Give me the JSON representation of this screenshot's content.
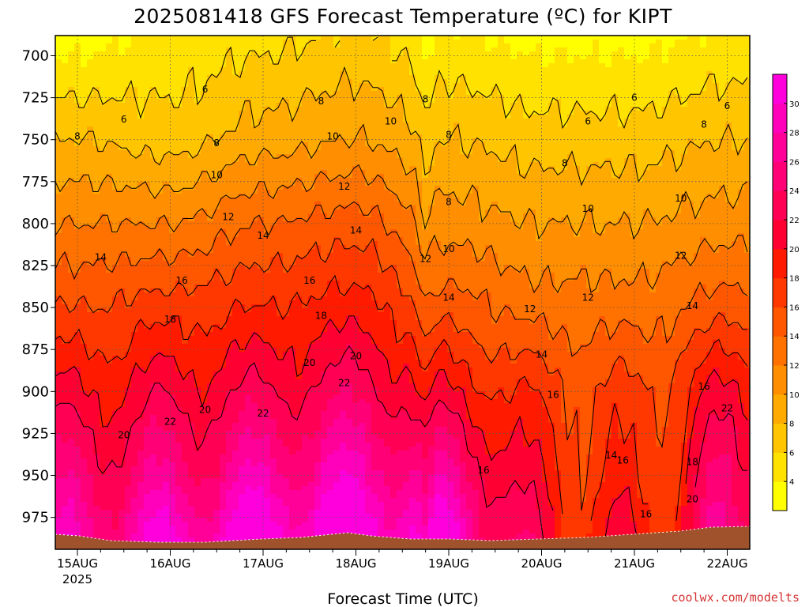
{
  "chart_data": {
    "type": "heatmap",
    "title": "2025081418 GFS Forecast Temperature (ºC) for KIPT",
    "xlabel": "Forecast Time (UTC)",
    "ylabel": "",
    "credit": "coolwx.com/modelts",
    "x_ticks": [
      "15AUG",
      "16AUG",
      "17AUG",
      "18AUG",
      "19AUG",
      "20AUG",
      "21AUG",
      "22AUG"
    ],
    "x_tick_sub": "2025",
    "y_ticks": [
      700,
      725,
      750,
      775,
      800,
      825,
      850,
      875,
      900,
      925,
      950,
      975
    ],
    "y_range": [
      688,
      994
    ],
    "y_scale": "pressure (hPa), top to bottom",
    "grid": true,
    "colorbar": {
      "ticks": [
        4,
        6,
        8,
        10,
        12,
        14,
        16,
        18,
        20,
        22,
        24,
        26,
        28,
        30
      ],
      "colors": [
        "#ffff00",
        "#ffe200",
        "#ffc600",
        "#ffaa00",
        "#ff8e00",
        "#ff7200",
        "#ff5600",
        "#ff3800",
        "#ff1a00",
        "#ff0033",
        "#ff0055",
        "#ff0077",
        "#ff0099",
        "#ff00bb",
        "#ff00dd"
      ]
    },
    "contour_levels": [
      6,
      8,
      10,
      12,
      14,
      16,
      18,
      20,
      22
    ],
    "series": [
      {
        "x": "15AUG 00Z",
        "profile": [
          {
            "p": 700,
            "t": 4
          },
          {
            "p": 750,
            "t": 8
          },
          {
            "p": 800,
            "t": 12
          },
          {
            "p": 850,
            "t": 16
          },
          {
            "p": 900,
            "t": 20
          },
          {
            "p": 950,
            "t": 24
          },
          {
            "p": 975,
            "t": 26
          }
        ]
      },
      {
        "x": "16AUG 00Z",
        "profile": [
          {
            "p": 700,
            "t": 5
          },
          {
            "p": 750,
            "t": 7
          },
          {
            "p": 800,
            "t": 12
          },
          {
            "p": 850,
            "t": 17
          },
          {
            "p": 900,
            "t": 21
          },
          {
            "p": 950,
            "t": 25
          },
          {
            "p": 975,
            "t": 28
          }
        ]
      },
      {
        "x": "17AUG 00Z",
        "profile": [
          {
            "p": 700,
            "t": 6
          },
          {
            "p": 750,
            "t": 9
          },
          {
            "p": 800,
            "t": 14
          },
          {
            "p": 850,
            "t": 18
          },
          {
            "p": 900,
            "t": 22
          },
          {
            "p": 950,
            "t": 27
          },
          {
            "p": 975,
            "t": 30
          }
        ]
      },
      {
        "x": "18AUG 00Z",
        "profile": [
          {
            "p": 700,
            "t": 7
          },
          {
            "p": 750,
            "t": 10
          },
          {
            "p": 800,
            "t": 15
          },
          {
            "p": 850,
            "t": 19
          },
          {
            "p": 900,
            "t": 23
          },
          {
            "p": 950,
            "t": 28
          },
          {
            "p": 975,
            "t": 31
          }
        ]
      },
      {
        "x": "19AUG 00Z",
        "profile": [
          {
            "p": 700,
            "t": 5
          },
          {
            "p": 750,
            "t": 8
          },
          {
            "p": 800,
            "t": 11
          },
          {
            "p": 850,
            "t": 15
          },
          {
            "p": 900,
            "t": 20
          },
          {
            "p": 950,
            "t": 26
          },
          {
            "p": 975,
            "t": 29
          }
        ]
      },
      {
        "x": "20AUG 00Z",
        "profile": [
          {
            "p": 700,
            "t": 4
          },
          {
            "p": 750,
            "t": 7
          },
          {
            "p": 800,
            "t": 10
          },
          {
            "p": 850,
            "t": 13
          },
          {
            "p": 900,
            "t": 17
          },
          {
            "p": 950,
            "t": 19
          },
          {
            "p": 975,
            "t": 20
          }
        ]
      },
      {
        "x": "21AUG 00Z",
        "profile": [
          {
            "p": 700,
            "t": 4
          },
          {
            "p": 750,
            "t": 7
          },
          {
            "p": 800,
            "t": 10
          },
          {
            "p": 850,
            "t": 13
          },
          {
            "p": 900,
            "t": 16
          },
          {
            "p": 950,
            "t": 17
          },
          {
            "p": 975,
            "t": 18
          }
        ]
      },
      {
        "x": "22AUG 00Z",
        "profile": [
          {
            "p": 700,
            "t": 5
          },
          {
            "p": 750,
            "t": 8
          },
          {
            "p": 800,
            "t": 11
          },
          {
            "p": 850,
            "t": 15
          },
          {
            "p": 900,
            "t": 20
          },
          {
            "p": 950,
            "t": 23
          },
          {
            "p": 975,
            "t": 24
          }
        ]
      }
    ],
    "contour_labels": [
      {
        "v": "6",
        "x": "15AUG 12Z",
        "p": 738
      },
      {
        "v": "6",
        "x": "16AUG 09Z",
        "p": 720
      },
      {
        "v": "8",
        "x": "15AUG 00Z",
        "p": 748
      },
      {
        "v": "8",
        "x": "16AUG 12Z",
        "p": 752
      },
      {
        "v": "8",
        "x": "17AUG 15Z",
        "p": 727
      },
      {
        "v": "8",
        "x": "18AUG 18Z",
        "p": 726
      },
      {
        "v": "8",
        "x": "19AUG 00Z",
        "p": 747
      },
      {
        "v": "8",
        "x": "19AUG 00Z",
        "p": 787
      },
      {
        "v": "6",
        "x": "20AUG 12Z",
        "p": 739
      },
      {
        "v": "6",
        "x": "21AUG 00Z",
        "p": 725
      },
      {
        "v": "6",
        "x": "22AUG 00Z",
        "p": 730
      },
      {
        "v": "8",
        "x": "20AUG 06Z",
        "p": 764
      },
      {
        "v": "8",
        "x": "21AUG 18Z",
        "p": 741
      },
      {
        "v": "10",
        "x": "16AUG 12Z",
        "p": 771
      },
      {
        "v": "10",
        "x": "17AUG 18Z",
        "p": 748
      },
      {
        "v": "10",
        "x": "18AUG 09Z",
        "p": 739
      },
      {
        "v": "10",
        "x": "19AUG 00Z",
        "p": 815
      },
      {
        "v": "10",
        "x": "20AUG 12Z",
        "p": 791
      },
      {
        "v": "10",
        "x": "21AUG 12Z",
        "p": 785
      },
      {
        "v": "12",
        "x": "16AUG 15Z",
        "p": 796
      },
      {
        "v": "12",
        "x": "17AUG 21Z",
        "p": 778
      },
      {
        "v": "12",
        "x": "18AUG 18Z",
        "p": 821
      },
      {
        "v": "12",
        "x": "19AUG 21Z",
        "p": 851
      },
      {
        "v": "12",
        "x": "21AUG 12Z",
        "p": 819
      },
      {
        "v": "12",
        "x": "20AUG 12Z",
        "p": 844
      },
      {
        "v": "14",
        "x": "15AUG 06Z",
        "p": 820
      },
      {
        "v": "14",
        "x": "17AUG 00Z",
        "p": 807
      },
      {
        "v": "14",
        "x": "18AUG 00Z",
        "p": 804
      },
      {
        "v": "14",
        "x": "19AUG 00Z",
        "p": 844
      },
      {
        "v": "14",
        "x": "20AUG 00Z",
        "p": 878
      },
      {
        "v": "14",
        "x": "21AUG 15Z",
        "p": 849
      },
      {
        "v": "14",
        "x": "20AUG 18Z",
        "p": 938
      },
      {
        "v": "16",
        "x": "16AUG 03Z",
        "p": 834
      },
      {
        "v": "16",
        "x": "17AUG 12Z",
        "p": 834
      },
      {
        "v": "16",
        "x": "19AUG 09Z",
        "p": 947
      },
      {
        "v": "16",
        "x": "20AUG 03Z",
        "p": 902
      },
      {
        "v": "16",
        "x": "20AUG 21Z",
        "p": 941
      },
      {
        "v": "16",
        "x": "21AUG 18Z",
        "p": 897
      },
      {
        "v": "16",
        "x": "21AUG 03Z",
        "p": 973
      },
      {
        "v": "18",
        "x": "16AUG 00Z",
        "p": 857
      },
      {
        "v": "18",
        "x": "17AUG 15Z",
        "p": 855
      },
      {
        "v": "18",
        "x": "21AUG 15Z",
        "p": 942
      },
      {
        "v": "20",
        "x": "15AUG 12Z",
        "p": 926
      },
      {
        "v": "20",
        "x": "16AUG 09Z",
        "p": 911
      },
      {
        "v": "20",
        "x": "17AUG 12Z",
        "p": 883
      },
      {
        "v": "20",
        "x": "18AUG 00Z",
        "p": 879
      },
      {
        "v": "20",
        "x": "21AUG 15Z",
        "p": 964
      },
      {
        "v": "22",
        "x": "16AUG 00Z",
        "p": 918
      },
      {
        "v": "22",
        "x": "17AUG 00Z",
        "p": 913
      },
      {
        "v": "22",
        "x": "17AUG 21Z",
        "p": 895
      },
      {
        "v": "22",
        "x": "22AUG 00Z",
        "p": 910
      }
    ]
  }
}
